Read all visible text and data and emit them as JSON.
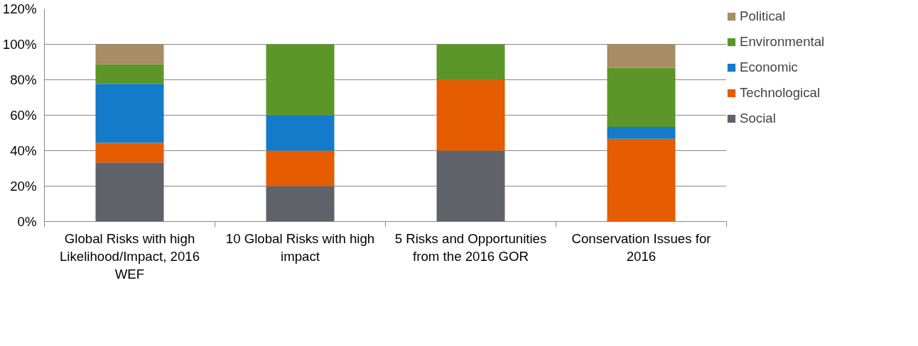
{
  "chart_data": {
    "type": "bar",
    "stacked": true,
    "categories": [
      "Global Risks with high Likelihood/Impact, 2016 WEF",
      "10 Global Risks with high impact",
      "5 Risks and Opportunities from the 2016 GOR",
      "Conservation Issues for 2016"
    ],
    "series": [
      {
        "name": "Social",
        "color": "#5f6268",
        "values": [
          33.3,
          20,
          40,
          0
        ]
      },
      {
        "name": "Technological",
        "color": "#e65c00",
        "values": [
          11.1,
          20,
          40,
          46.7
        ]
      },
      {
        "name": "Economic",
        "color": "#137bc9",
        "values": [
          33.3,
          20,
          0,
          6.7
        ]
      },
      {
        "name": "Environmental",
        "color": "#5c9629",
        "values": [
          11.1,
          40,
          20,
          33.3
        ]
      },
      {
        "name": "Political",
        "color": "#a88c64",
        "values": [
          11.1,
          0,
          0,
          13.3
        ]
      }
    ],
    "ylim": [
      0,
      120
    ],
    "yticks": [
      {
        "value": 0,
        "label": "0%"
      },
      {
        "value": 20,
        "label": "20%"
      },
      {
        "value": 40,
        "label": "40%"
      },
      {
        "value": 60,
        "label": "60%"
      },
      {
        "value": 80,
        "label": "80%"
      },
      {
        "value": 100,
        "label": "100%"
      },
      {
        "value": 120,
        "label": "120%"
      }
    ],
    "grid": "y",
    "legend": "right"
  }
}
